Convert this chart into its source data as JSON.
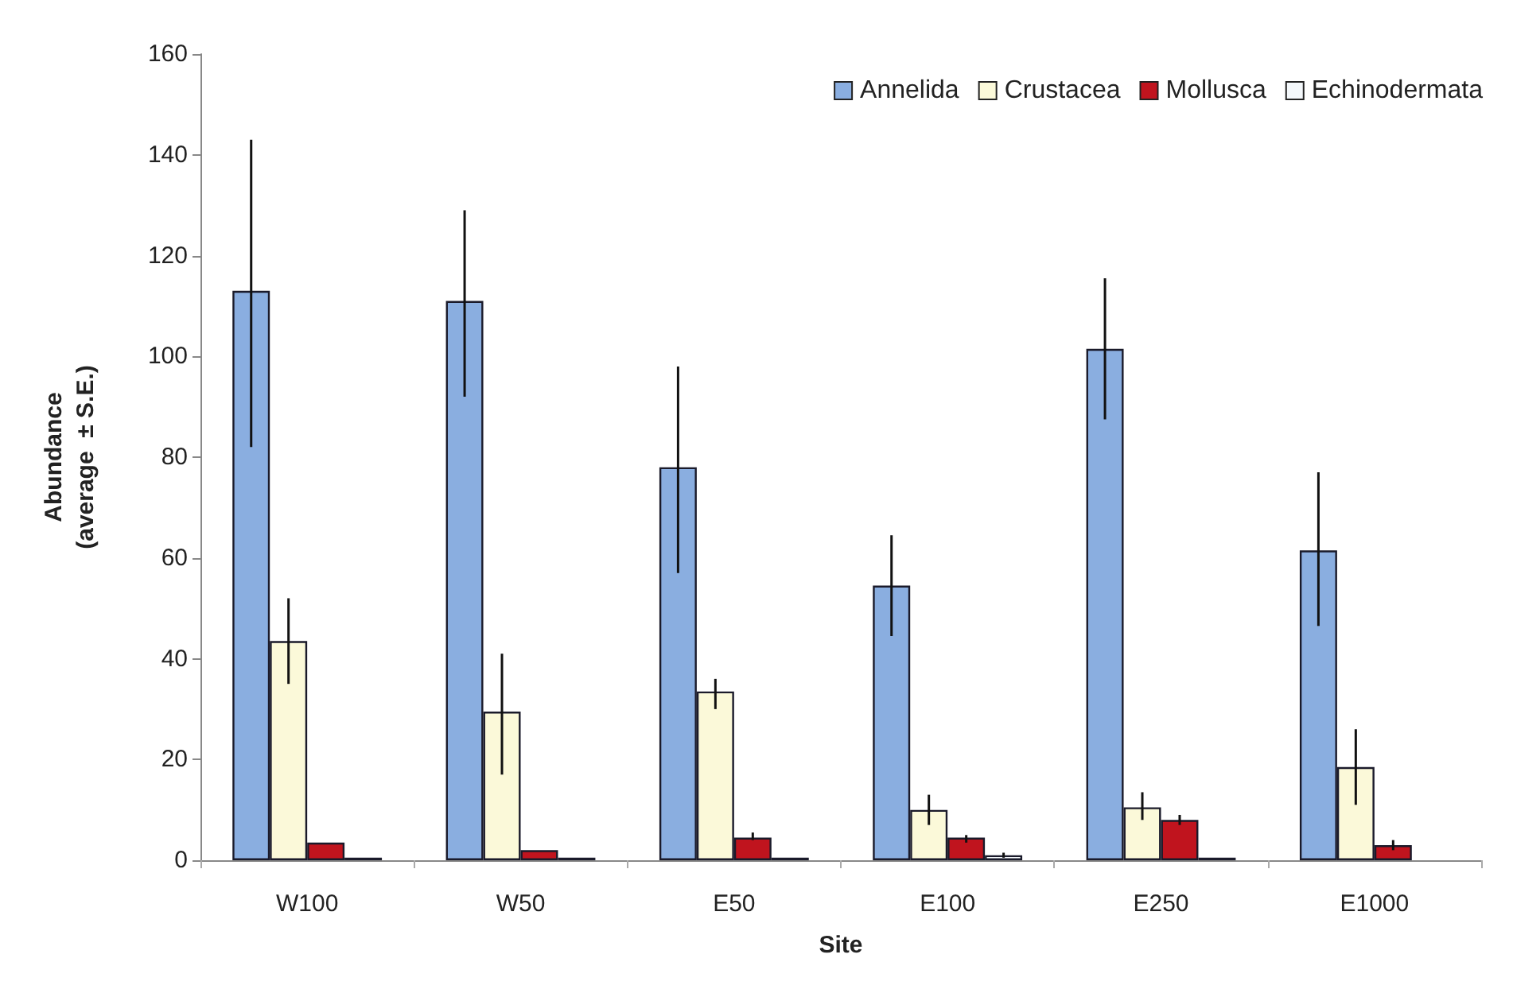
{
  "chart_data": {
    "type": "bar",
    "xlabel": "Site",
    "ylabel": "Abundance\n(average  ± S.E.)",
    "categories": [
      "W100",
      "W50",
      "E50",
      "E100",
      "E250",
      "E1000"
    ],
    "series": [
      {
        "name": "Annelida",
        "color": "#8aaee0",
        "values": [
          113,
          111,
          78,
          54.5,
          101.5,
          61.5
        ],
        "errors": [
          [
            82,
            143
          ],
          [
            92,
            129
          ],
          [
            57,
            98
          ],
          [
            44.5,
            64.5
          ],
          [
            87.5,
            115.5
          ],
          [
            46.5,
            77
          ]
        ]
      },
      {
        "name": "Crustacea",
        "color": "#fbf9d9",
        "values": [
          43.5,
          29.5,
          33.5,
          10,
          10.5,
          18.5
        ],
        "errors": [
          [
            35,
            52
          ],
          [
            17,
            41
          ],
          [
            30,
            36
          ],
          [
            7,
            13
          ],
          [
            8,
            13.5
          ],
          [
            11,
            26
          ]
        ]
      },
      {
        "name": "Mollusca",
        "color": "#c0141e",
        "values": [
          3.5,
          2,
          4.5,
          4.5,
          8,
          3
        ],
        "errors": [
          null,
          null,
          [
            4,
            5.5
          ],
          [
            3.5,
            5
          ],
          [
            7,
            9
          ],
          [
            2,
            4
          ]
        ]
      },
      {
        "name": "Echinodermata",
        "color": "#f4f8fb",
        "values": [
          0.5,
          0.5,
          0.5,
          1,
          0.5,
          null
        ],
        "errors": [
          null,
          null,
          null,
          [
            0.5,
            1.5
          ],
          null,
          null
        ]
      }
    ],
    "ylim": [
      0,
      160
    ],
    "yticks": [
      0,
      20,
      40,
      60,
      80,
      100,
      120,
      140,
      160
    ],
    "grid": false,
    "legend": "top right"
  }
}
